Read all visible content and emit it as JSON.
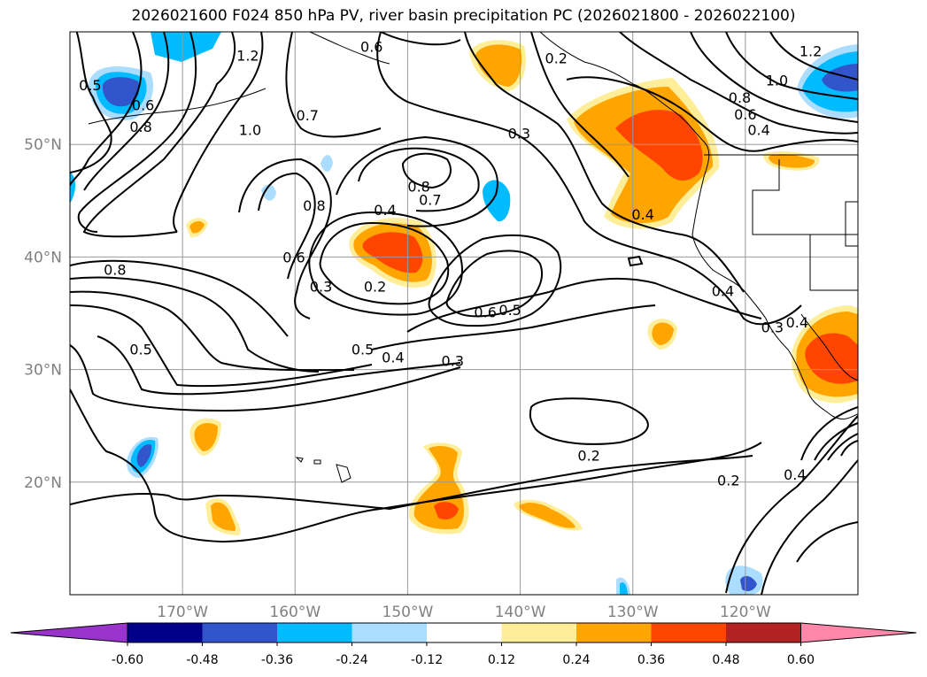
{
  "title": "2026021600 F024 850 hPa PV, river basin precipitation PC (2026021800 - 2026022100)",
  "map": {
    "lon_min": -180,
    "lon_max": -110,
    "lat_min": 10,
    "lat_max": 60,
    "lat_ticks": [
      {
        "lat": 50,
        "label": "50°N"
      },
      {
        "lat": 40,
        "label": "40°N"
      },
      {
        "lat": 30,
        "label": "30°N"
      },
      {
        "lat": 20,
        "label": "20°N"
      }
    ],
    "lon_ticks": [
      {
        "lon": -170,
        "label": "170°W"
      },
      {
        "lon": -160,
        "label": "160°W"
      },
      {
        "lon": -150,
        "label": "150°W"
      },
      {
        "lon": -140,
        "label": "140°W"
      },
      {
        "lon": -130,
        "label": "130°W"
      },
      {
        "lon": -120,
        "label": "120°W"
      }
    ]
  },
  "contour_labels": [
    {
      "text": "0.6",
      "lon": -153.2,
      "lat": 58.7
    },
    {
      "text": "0.2",
      "lon": -136.8,
      "lat": 57.7
    },
    {
      "text": "1.2",
      "lon": -164.2,
      "lat": 57.9
    },
    {
      "text": "1.2",
      "lon": -114.2,
      "lat": 58.3
    },
    {
      "text": "1.0",
      "lon": -117.2,
      "lat": 55.7
    },
    {
      "text": "0.8",
      "lon": -120.5,
      "lat": 54.2
    },
    {
      "text": "0.6",
      "lon": -120.0,
      "lat": 52.7
    },
    {
      "text": "0.4",
      "lon": -118.8,
      "lat": 51.3
    },
    {
      "text": "0.5",
      "lon": -178.2,
      "lat": 55.3
    },
    {
      "text": "0.6",
      "lon": -173.5,
      "lat": 53.5
    },
    {
      "text": "0.8",
      "lon": -173.7,
      "lat": 51.6
    },
    {
      "text": "1.0",
      "lon": -164.0,
      "lat": 51.3
    },
    {
      "text": "0.7",
      "lon": -158.9,
      "lat": 52.6
    },
    {
      "text": "0.3",
      "lon": -140.1,
      "lat": 51.0
    },
    {
      "text": "0.8",
      "lon": -149.0,
      "lat": 46.3
    },
    {
      "text": "0.7",
      "lon": -148.0,
      "lat": 45.1
    },
    {
      "text": "0.8",
      "lon": -158.3,
      "lat": 44.6
    },
    {
      "text": "0.4",
      "lon": -152.0,
      "lat": 44.2
    },
    {
      "text": "0.4",
      "lon": -129.1,
      "lat": 43.8
    },
    {
      "text": "0.6",
      "lon": -160.1,
      "lat": 40.0
    },
    {
      "text": "0.8",
      "lon": -176.0,
      "lat": 38.9
    },
    {
      "text": "0.3",
      "lon": -157.7,
      "lat": 37.4
    },
    {
      "text": "0.2",
      "lon": -152.9,
      "lat": 37.4
    },
    {
      "text": "0.4",
      "lon": -122.0,
      "lat": 37.0
    },
    {
      "text": "0.6",
      "lon": -143.1,
      "lat": 35.1
    },
    {
      "text": "0.5",
      "lon": -140.9,
      "lat": 35.3
    },
    {
      "text": "0.3",
      "lon": -117.6,
      "lat": 33.8
    },
    {
      "text": "0.4",
      "lon": -115.4,
      "lat": 34.2
    },
    {
      "text": "0.5",
      "lon": -173.7,
      "lat": 31.8
    },
    {
      "text": "0.5",
      "lon": -154.0,
      "lat": 31.8
    },
    {
      "text": "0.4",
      "lon": -151.3,
      "lat": 31.1
    },
    {
      "text": "0.3",
      "lon": -146.0,
      "lat": 30.8
    },
    {
      "text": "0.2",
      "lon": -133.9,
      "lat": 22.4
    },
    {
      "text": "0.2",
      "lon": -121.5,
      "lat": 20.2
    },
    {
      "text": "0.4",
      "lon": -115.6,
      "lat": 20.7
    }
  ],
  "colorbar": {
    "colors": [
      "#9933cc",
      "#00008b",
      "#3355cc",
      "#00bbff",
      "#aaddff",
      "#ffffff",
      "#ffee99",
      "#ffa500",
      "#ff4500",
      "#b22222",
      "#ff88aa"
    ],
    "labels": [
      "-0.60",
      "-0.48",
      "-0.36",
      "-0.24",
      "-0.12",
      "0.12",
      "0.24",
      "0.36",
      "0.48",
      "0.60"
    ]
  }
}
